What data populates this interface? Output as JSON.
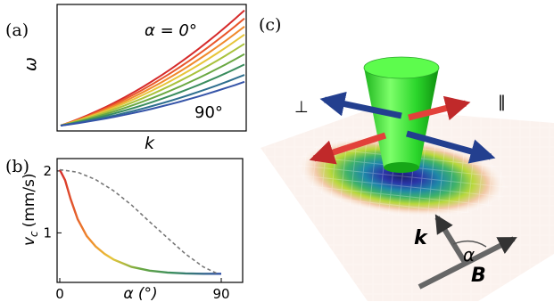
{
  "panels": {
    "a": {
      "label": "(a)",
      "ylabel": "ω",
      "xlabel": "k",
      "top_annotation": "α = 0°",
      "bottom_annotation": "90°"
    },
    "b": {
      "label": "(b)",
      "ylabel": "v",
      "ylabel_sub": "c",
      "ylabel_unit": "(mm/s)",
      "xlabel": "α (°)"
    },
    "c": {
      "label": "(c)",
      "perp_symbol": "⊥",
      "parallel_symbol": "‖",
      "k_label": "k",
      "alpha_label": "α",
      "B_label": "B"
    }
  },
  "chart_data": [
    {
      "type": "line",
      "panel": "a",
      "title": "",
      "xlabel": "k",
      "ylabel": "ω",
      "series": [
        {
          "name": "α = 0°",
          "color": "#d62b2b",
          "slope": 1.0
        },
        {
          "color": "#e9572b",
          "slope": 0.93
        },
        {
          "color": "#f08a2c",
          "slope": 0.86
        },
        {
          "color": "#e7c53a",
          "slope": 0.79
        },
        {
          "color": "#a9c23c",
          "slope": 0.71
        },
        {
          "color": "#6aa842",
          "slope": 0.62
        },
        {
          "color": "#3a8d5e",
          "slope": 0.53
        },
        {
          "color": "#2e6f8f",
          "slope": 0.44
        },
        {
          "name": "90°",
          "color": "#3554a8",
          "slope": 0.38
        }
      ]
    },
    {
      "type": "line",
      "panel": "b",
      "title": "",
      "xlabel": "α (°)",
      "ylabel": "vc (mm/s)",
      "xlim": [
        0,
        90
      ],
      "ylim": [
        0.2,
        2.2
      ],
      "xticks": [
        "0",
        "α (°)",
        "90"
      ],
      "yticks": [
        "1",
        "2"
      ],
      "series": [
        {
          "style": "solid-gradient",
          "x": [
            0,
            3,
            6,
            10,
            15,
            20,
            25,
            30,
            40,
            50,
            60,
            70,
            80,
            90
          ],
          "y": [
            2.02,
            1.85,
            1.55,
            1.22,
            0.95,
            0.78,
            0.66,
            0.57,
            0.45,
            0.39,
            0.36,
            0.345,
            0.34,
            0.34
          ]
        },
        {
          "style": "dashed",
          "x": [
            0,
            10,
            20,
            30,
            40,
            50,
            60,
            70,
            80,
            88
          ],
          "y": [
            2.02,
            1.98,
            1.86,
            1.68,
            1.45,
            1.18,
            0.92,
            0.66,
            0.45,
            0.34
          ]
        }
      ]
    }
  ]
}
